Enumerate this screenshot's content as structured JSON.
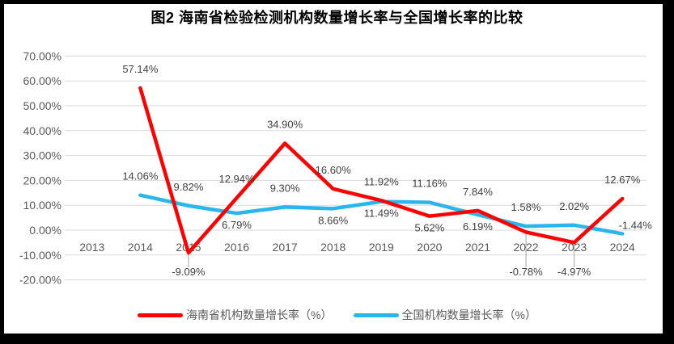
{
  "chart_data": {
    "type": "line",
    "title": "图2 海南省检验检测机构数量增长率与全国增长率的比较",
    "categories": [
      "2013",
      "2014",
      "2015",
      "2016",
      "2017",
      "2018",
      "2019",
      "2020",
      "2021",
      "2022",
      "2023",
      "2024"
    ],
    "y_axis": {
      "min": -20,
      "max": 70,
      "step": 10,
      "tick_labels": [
        "70.00%",
        "60.00%",
        "50.00%",
        "40.00%",
        "30.00%",
        "20.00%",
        "10.00%",
        "0.00%",
        "-10.00%",
        "-20.00%"
      ]
    },
    "grid": true,
    "legend_position": "bottom",
    "series": [
      {
        "id": "hainan",
        "name": "海南省机构数量增长率（%）",
        "color": "#FF0000",
        "values": [
          null,
          57.14,
          -9.09,
          12.94,
          34.9,
          16.6,
          11.92,
          5.62,
          7.84,
          -0.78,
          -4.97,
          12.67
        ],
        "point_labels": [
          null,
          "57.14%",
          "-9.09%",
          "12.94%",
          "34.90%",
          "16.60%",
          "11.92%",
          "5.62%",
          "7.84%",
          "-0.78%",
          "-4.97%",
          "12.67%"
        ],
        "label_placement": [
          null,
          "above",
          "axis-below",
          "above",
          "above",
          "above",
          "above",
          "below",
          "above",
          "axis-below",
          "axis-below",
          "above"
        ]
      },
      {
        "id": "national",
        "name": "全国机构数量增长率（%）",
        "color": "#29B6EB",
        "values": [
          null,
          14.06,
          9.82,
          6.79,
          9.3,
          8.66,
          11.49,
          11.16,
          6.19,
          1.58,
          2.02,
          -1.44
        ],
        "point_labels": [
          null,
          "14.06%",
          "9.82%",
          "6.79%",
          "9.30%",
          "8.66%",
          "11.49%",
          "11.16%",
          "6.19%",
          "1.58%",
          "2.02%",
          "-1.44%"
        ],
        "label_placement": [
          null,
          "above",
          "above",
          "below",
          "above",
          "below",
          "below",
          "above",
          "below",
          "above",
          "above",
          "above-right"
        ]
      }
    ],
    "styles": {
      "grid_color": "#D9D9D9",
      "axis_text_color": "#595959",
      "data_label_color": "#404040",
      "leader_line_color": "#A6A6A6",
      "background": "#FFFFFF",
      "frame_color": "#000000"
    }
  }
}
